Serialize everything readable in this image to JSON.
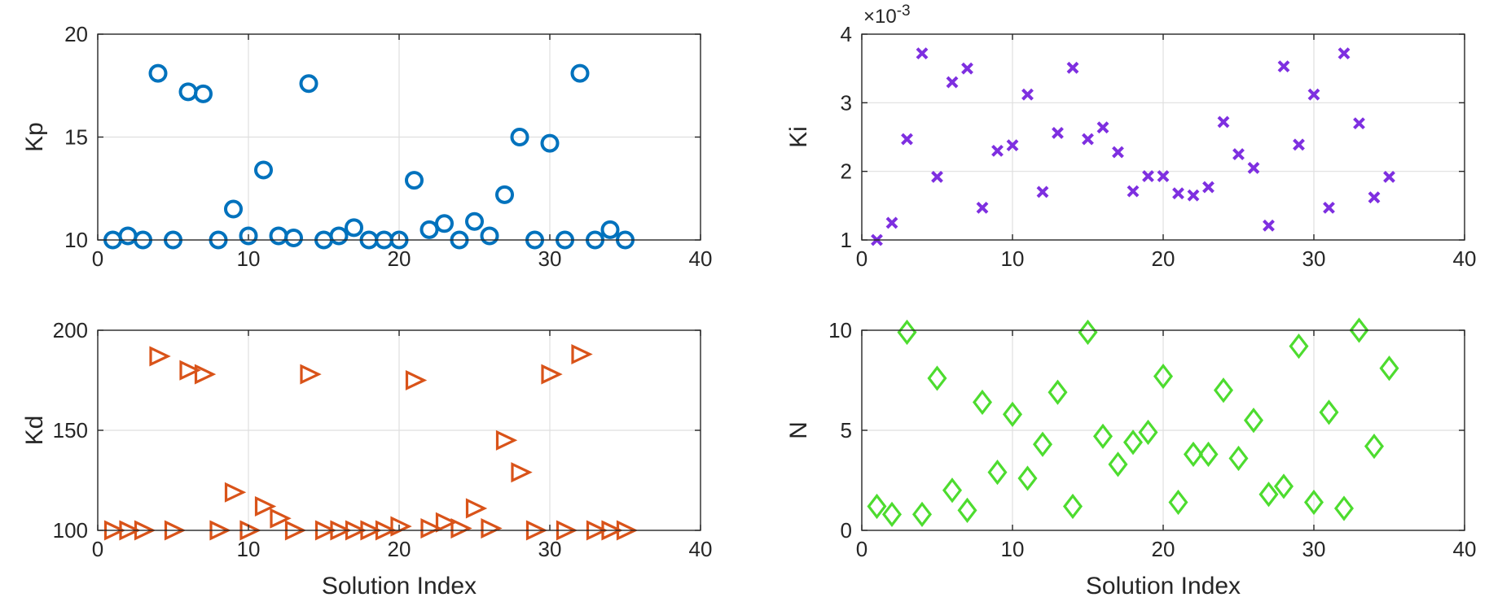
{
  "chart_data": [
    {
      "type": "scatter",
      "id": "kp",
      "ylabel": "Kp",
      "xlabel": "",
      "xlim": [
        0,
        40
      ],
      "ylim": [
        10,
        20
      ],
      "xticks": [
        0,
        10,
        20,
        30,
        40
      ],
      "yticks": [
        10,
        15,
        20
      ],
      "exponent": "",
      "marker": "circle",
      "color": "#0072BD",
      "grid": true,
      "x": [
        1,
        2,
        3,
        4,
        5,
        6,
        7,
        8,
        9,
        10,
        11,
        12,
        13,
        14,
        15,
        16,
        17,
        18,
        19,
        20,
        21,
        22,
        23,
        24,
        25,
        26,
        27,
        28,
        29,
        30,
        31,
        32,
        33,
        34,
        35
      ],
      "y": [
        10.0,
        10.2,
        10.0,
        18.1,
        10.0,
        17.2,
        17.1,
        10.0,
        11.5,
        10.2,
        13.4,
        10.2,
        10.1,
        17.6,
        10.0,
        10.2,
        10.6,
        10.0,
        10.0,
        10.0,
        12.9,
        10.5,
        10.8,
        10.0,
        10.9,
        10.2,
        12.2,
        15.0,
        10.0,
        14.7,
        10.0,
        18.1,
        10.0,
        10.5,
        10.0
      ]
    },
    {
      "type": "scatter",
      "id": "ki",
      "ylabel": "Ki",
      "xlabel": "",
      "xlim": [
        0,
        40
      ],
      "ylim": [
        1,
        4
      ],
      "xticks": [
        0,
        10,
        20,
        30,
        40
      ],
      "yticks": [
        1,
        2,
        3,
        4
      ],
      "exponent": "×10",
      "exponent_power": "-3",
      "marker": "x",
      "color": "#7E2FE0",
      "grid": true,
      "x": [
        1,
        2,
        3,
        4,
        5,
        6,
        7,
        8,
        9,
        10,
        11,
        12,
        13,
        14,
        15,
        16,
        17,
        18,
        19,
        20,
        21,
        22,
        23,
        24,
        25,
        26,
        27,
        28,
        29,
        30,
        31,
        32,
        33,
        34,
        35
      ],
      "y": [
        1.0,
        1.25,
        2.47,
        3.72,
        1.92,
        3.3,
        3.5,
        1.47,
        2.3,
        2.38,
        3.12,
        1.7,
        2.56,
        3.51,
        2.47,
        2.64,
        2.28,
        1.71,
        1.93,
        1.93,
        1.68,
        1.65,
        1.77,
        2.72,
        2.25,
        2.05,
        1.21,
        3.53,
        2.39,
        3.12,
        1.47,
        3.72,
        2.7,
        1.62,
        1.92
      ]
    },
    {
      "type": "scatter",
      "id": "kd",
      "ylabel": "Kd",
      "xlabel": "Solution Index",
      "xlim": [
        0,
        40
      ],
      "ylim": [
        100,
        200
      ],
      "xticks": [
        0,
        10,
        20,
        30,
        40
      ],
      "yticks": [
        100,
        150,
        200
      ],
      "exponent": "",
      "marker": "triangle-right",
      "color": "#D95319",
      "grid": true,
      "x": [
        1,
        2,
        3,
        4,
        5,
        6,
        7,
        8,
        9,
        10,
        11,
        12,
        13,
        14,
        15,
        16,
        17,
        18,
        19,
        20,
        21,
        22,
        23,
        24,
        25,
        26,
        27,
        28,
        29,
        30,
        31,
        32,
        33,
        34,
        35
      ],
      "y": [
        100,
        100,
        100,
        187,
        100,
        180,
        178,
        100,
        119,
        100,
        112,
        106,
        100,
        178,
        100,
        100,
        100,
        100,
        100,
        102,
        175,
        101,
        104,
        101,
        111,
        101,
        145,
        129,
        100,
        178,
        100,
        188,
        100,
        100,
        100
      ]
    },
    {
      "type": "scatter",
      "id": "n",
      "ylabel": "N",
      "xlabel": "Solution Index",
      "xlim": [
        0,
        40
      ],
      "ylim": [
        0,
        10
      ],
      "xticks": [
        0,
        10,
        20,
        30,
        40
      ],
      "yticks": [
        0,
        5,
        10
      ],
      "exponent": "",
      "marker": "diamond",
      "color": "#4DDC2F",
      "grid": true,
      "x": [
        1,
        2,
        3,
        4,
        5,
        6,
        7,
        8,
        9,
        10,
        11,
        12,
        13,
        14,
        15,
        16,
        17,
        18,
        19,
        20,
        21,
        22,
        23,
        24,
        25,
        26,
        27,
        28,
        29,
        30,
        31,
        32,
        33,
        34,
        35
      ],
      "y": [
        1.2,
        0.8,
        9.9,
        0.8,
        7.6,
        2.0,
        1.0,
        6.4,
        2.9,
        5.8,
        2.6,
        4.3,
        6.9,
        1.2,
        9.9,
        4.7,
        3.3,
        4.4,
        4.9,
        7.7,
        1.4,
        3.8,
        3.8,
        7.0,
        3.6,
        5.5,
        1.8,
        2.2,
        9.2,
        1.4,
        5.9,
        1.1,
        10.0,
        4.2,
        8.1
      ]
    }
  ]
}
